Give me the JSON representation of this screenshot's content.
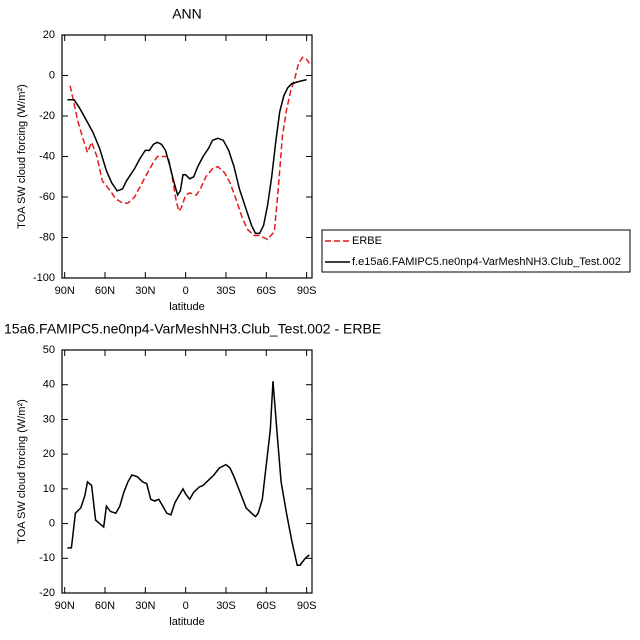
{
  "chart_data": [
    {
      "type": "line",
      "title": "ANN",
      "xlabel": "latitude",
      "ylabel": "TOA SW cloud forcing (W/m²)",
      "xlim": [
        92,
        -94
      ],
      "ylim": [
        -100,
        20
      ],
      "xticks": [
        {
          "value": 90,
          "label": "90N"
        },
        {
          "value": 60,
          "label": "60N"
        },
        {
          "value": 30,
          "label": "30N"
        },
        0,
        {
          "value": -30,
          "label": "30S"
        },
        {
          "value": -60,
          "label": "60S"
        },
        {
          "value": -90,
          "label": "90S"
        }
      ],
      "yticks": [
        -100,
        -80,
        -60,
        -40,
        -20,
        0,
        20
      ],
      "legend": "outside right",
      "series": [
        {
          "name": "ERBE",
          "color": "#e41a1c",
          "dash": true,
          "x": [
            86,
            83,
            80,
            76,
            73,
            70,
            66,
            62,
            56,
            52,
            47,
            43,
            38,
            34,
            30,
            25,
            21,
            16,
            13,
            10,
            7,
            5,
            3,
            0,
            -3,
            -8,
            -11,
            -15,
            -20,
            -24,
            -29,
            -33,
            -38,
            -42,
            -46,
            -51,
            -55,
            -58,
            -61,
            -66,
            -69,
            -72,
            -75,
            -78,
            -81,
            -84,
            -87,
            -90,
            -92
          ],
          "values": [
            -5,
            -14,
            -23,
            -32,
            -38,
            -33,
            -40,
            -52,
            -57,
            -61,
            -63,
            -63,
            -60,
            -55,
            -50,
            -44,
            -40,
            -40,
            -40,
            -50,
            -62,
            -67,
            -65,
            -59,
            -58,
            -59,
            -56,
            -50,
            -46,
            -45,
            -48,
            -53,
            -62,
            -70,
            -76,
            -79,
            -79,
            -80,
            -81,
            -77,
            -55,
            -30,
            -17,
            -8,
            -2,
            6,
            9,
            8,
            6
          ]
        },
        {
          "name": "f.e15a6.FAMIPC5.ne0np4-VarMeshNH3.Club_Test.002",
          "color": "#000000",
          "dash": false,
          "x": [
            88,
            83,
            79,
            74,
            69,
            64,
            59,
            55,
            51,
            47,
            44,
            38,
            34,
            30,
            27,
            24,
            21,
            18,
            15,
            12,
            9,
            6,
            4,
            2,
            0,
            -3,
            -6,
            -9,
            -13,
            -17,
            -20,
            -24,
            -28,
            -32,
            -36,
            -40,
            -45,
            -49,
            -52,
            -55,
            -58,
            -61,
            -64,
            -67,
            -70,
            -73,
            -76,
            -79,
            -84,
            -90
          ],
          "values": [
            -12,
            -12,
            -16,
            -22,
            -28,
            -36,
            -47,
            -53,
            -57,
            -56,
            -52,
            -46,
            -41,
            -37,
            -37,
            -34,
            -33,
            -34,
            -37,
            -44,
            -52,
            -59,
            -57,
            -49,
            -49,
            -51,
            -50,
            -45,
            -40,
            -36,
            -32,
            -31,
            -32,
            -37,
            -45,
            -56,
            -66,
            -74,
            -78,
            -78,
            -74,
            -64,
            -50,
            -33,
            -18,
            -10,
            -6,
            -4,
            -3,
            -2
          ]
        }
      ]
    },
    {
      "type": "line",
      "title": "15a6.FAMIPC5.ne0np4-VarMeshNH3.Club_Test.002 - ERBE",
      "xlabel": "latitude",
      "ylabel": "TOA SW cloud forcing (W/m²)",
      "xlim": [
        92,
        -94
      ],
      "ylim": [
        -20,
        50
      ],
      "xticks": [
        {
          "value": 90,
          "label": "90N"
        },
        {
          "value": 60,
          "label": "60N"
        },
        {
          "value": 30,
          "label": "30N"
        },
        0,
        {
          "value": -30,
          "label": "30S"
        },
        {
          "value": -60,
          "label": "60S"
        },
        {
          "value": -90,
          "label": "90S"
        }
      ],
      "yticks": [
        -20,
        -10,
        0,
        10,
        20,
        30,
        40,
        50
      ],
      "series": [
        {
          "color": "#000000",
          "dash": false,
          "x": [
            88,
            85,
            82,
            78,
            75,
            73,
            70,
            67,
            64,
            61,
            59,
            56,
            52,
            49,
            46,
            43,
            40,
            36,
            32,
            29,
            26,
            23,
            20,
            17,
            14,
            11,
            8,
            5,
            2,
            0,
            -3,
            -6,
            -10,
            -13,
            -17,
            -21,
            -25,
            -30,
            -33,
            -36,
            -41,
            -45,
            -49,
            -52,
            -54,
            -57,
            -60,
            -63,
            -65,
            -68,
            -71,
            -75,
            -79,
            -83,
            -85,
            -89,
            -92
          ],
          "values": [
            -7,
            -7,
            3,
            4.5,
            8,
            12,
            11,
            1,
            0,
            -1,
            5,
            3.5,
            3,
            5,
            9,
            12,
            14,
            13.5,
            12,
            11.5,
            7,
            6.5,
            7,
            5,
            3,
            2.5,
            6,
            8,
            10,
            8.5,
            7,
            9,
            10.5,
            11,
            12.5,
            14,
            16,
            17,
            16,
            13.5,
            8.5,
            4.5,
            3,
            2,
            3,
            7,
            17,
            27,
            41,
            26,
            12,
            3,
            -5,
            -12,
            -12,
            -10,
            -9
          ]
        }
      ]
    }
  ]
}
